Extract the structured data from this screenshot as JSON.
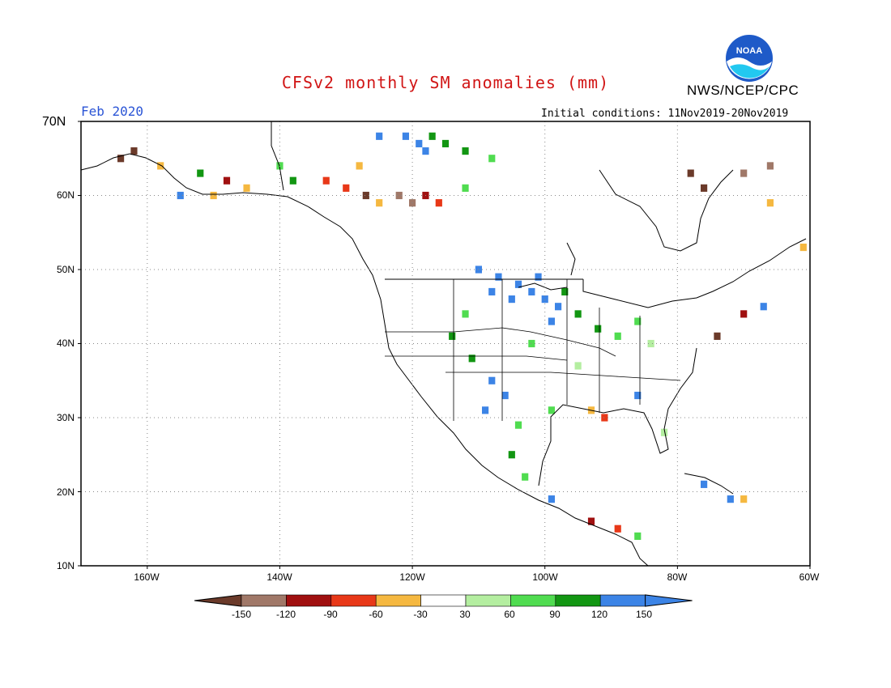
{
  "header": {
    "title": "CFSv2 monthly SM anomalies (mm)",
    "agency": "NWS/NCEP/CPC",
    "logo_text": "NOAA",
    "valid_month": "Feb 2020",
    "initial_conditions": "Initial conditions: 11Nov2019-20Nov2019"
  },
  "map": {
    "lat_labels": [
      "70N",
      "60N",
      "50N",
      "40N",
      "30N",
      "20N",
      "10N"
    ],
    "lon_labels": [
      "160W",
      "140W",
      "120W",
      "100W",
      "80W",
      "60W"
    ],
    "lat_range": [
      10,
      70
    ],
    "lon_range": [
      -170,
      -60
    ],
    "grid": true,
    "cells": [
      {
        "lon": -125,
        "lat": 68,
        "v": 130
      },
      {
        "lon": -121,
        "lat": 68,
        "v": 130
      },
      {
        "lon": -119,
        "lat": 67,
        "v": 130
      },
      {
        "lon": -117,
        "lat": 68,
        "v": 100
      },
      {
        "lon": -115,
        "lat": 67,
        "v": 100
      },
      {
        "lon": -118,
        "lat": 66,
        "v": 130
      },
      {
        "lon": -112,
        "lat": 66,
        "v": 100
      },
      {
        "lon": -108,
        "lat": 65,
        "v": 70
      },
      {
        "lon": -162,
        "lat": 66,
        "v": -160
      },
      {
        "lon": -164,
        "lat": 65,
        "v": -160
      },
      {
        "lon": -158,
        "lat": 64,
        "v": -45
      },
      {
        "lon": -152,
        "lat": 63,
        "v": 100
      },
      {
        "lon": -148,
        "lat": 62,
        "v": -100
      },
      {
        "lon": -145,
        "lat": 61,
        "v": -45
      },
      {
        "lon": -138,
        "lat": 62,
        "v": 100
      },
      {
        "lon": -133,
        "lat": 62,
        "v": -75
      },
      {
        "lon": -130,
        "lat": 61,
        "v": -75
      },
      {
        "lon": -127,
        "lat": 60,
        "v": -160
      },
      {
        "lon": -125,
        "lat": 59,
        "v": -45
      },
      {
        "lon": -122,
        "lat": 60,
        "v": -130
      },
      {
        "lon": -120,
        "lat": 59,
        "v": -130
      },
      {
        "lon": -118,
        "lat": 60,
        "v": -100
      },
      {
        "lon": -116,
        "lat": 59,
        "v": -75
      },
      {
        "lon": -112,
        "lat": 61,
        "v": 70
      },
      {
        "lon": -128,
        "lat": 64,
        "v": -45
      },
      {
        "lon": -140,
        "lat": 64,
        "v": 70
      },
      {
        "lon": -155,
        "lat": 60,
        "v": 130
      },
      {
        "lon": -150,
        "lat": 60,
        "v": -45
      },
      {
        "lon": -110,
        "lat": 50,
        "v": 130
      },
      {
        "lon": -107,
        "lat": 49,
        "v": 130
      },
      {
        "lon": -104,
        "lat": 48,
        "v": 130
      },
      {
        "lon": -102,
        "lat": 47,
        "v": 130
      },
      {
        "lon": -100,
        "lat": 46,
        "v": 130
      },
      {
        "lon": -98,
        "lat": 45,
        "v": 130
      },
      {
        "lon": -105,
        "lat": 46,
        "v": 130
      },
      {
        "lon": -108,
        "lat": 47,
        "v": 130
      },
      {
        "lon": -101,
        "lat": 49,
        "v": 130
      },
      {
        "lon": -99,
        "lat": 43,
        "v": 130
      },
      {
        "lon": -97,
        "lat": 47,
        "v": 100
      },
      {
        "lon": -95,
        "lat": 44,
        "v": 100
      },
      {
        "lon": -112,
        "lat": 44,
        "v": 70
      },
      {
        "lon": -114,
        "lat": 41,
        "v": 100
      },
      {
        "lon": -111,
        "lat": 38,
        "v": 100
      },
      {
        "lon": -108,
        "lat": 35,
        "v": 130
      },
      {
        "lon": -106,
        "lat": 33,
        "v": 130
      },
      {
        "lon": -109,
        "lat": 31,
        "v": 130
      },
      {
        "lon": -104,
        "lat": 29,
        "v": 70
      },
      {
        "lon": -102,
        "lat": 40,
        "v": 70
      },
      {
        "lon": -92,
        "lat": 42,
        "v": 100
      },
      {
        "lon": -89,
        "lat": 41,
        "v": 70
      },
      {
        "lon": -86,
        "lat": 43,
        "v": 70
      },
      {
        "lon": -84,
        "lat": 40,
        "v": 45
      },
      {
        "lon": -86,
        "lat": 33,
        "v": 130
      },
      {
        "lon": -82,
        "lat": 28,
        "v": 45
      },
      {
        "lon": -95,
        "lat": 37,
        "v": 45
      },
      {
        "lon": -99,
        "lat": 31,
        "v": 70
      },
      {
        "lon": -93,
        "lat": 31,
        "v": -45
      },
      {
        "lon": -91,
        "lat": 30,
        "v": -75
      },
      {
        "lon": -105,
        "lat": 25,
        "v": 100
      },
      {
        "lon": -103,
        "lat": 22,
        "v": 70
      },
      {
        "lon": -99,
        "lat": 19,
        "v": 130
      },
      {
        "lon": -93,
        "lat": 16,
        "v": -100
      },
      {
        "lon": -89,
        "lat": 15,
        "v": -75
      },
      {
        "lon": -86,
        "lat": 14,
        "v": 70
      },
      {
        "lon": -76,
        "lat": 21,
        "v": 130
      },
      {
        "lon": -72,
        "lat": 19,
        "v": 130
      },
      {
        "lon": -70,
        "lat": 19,
        "v": -45
      },
      {
        "lon": -74,
        "lat": 41,
        "v": -160
      },
      {
        "lon": -70,
        "lat": 44,
        "v": -100
      },
      {
        "lon": -67,
        "lat": 45,
        "v": 130
      },
      {
        "lon": -66,
        "lat": 59,
        "v": -45
      },
      {
        "lon": -61,
        "lat": 53,
        "v": -45
      },
      {
        "lon": -70,
        "lat": 63,
        "v": -130
      },
      {
        "lon": -66,
        "lat": 64,
        "v": -130
      },
      {
        "lon": -76,
        "lat": 61,
        "v": -160
      },
      {
        "lon": -78,
        "lat": 63,
        "v": -160
      }
    ]
  },
  "colorbar": {
    "labels": [
      "-150",
      "-120",
      "-90",
      "-60",
      "-30",
      "30",
      "60",
      "90",
      "120",
      "150"
    ],
    "colors": [
      "#6b3a2a",
      "#a07868",
      "#a01010",
      "#e83818",
      "#f5b840",
      "#ffffff",
      "#b4eea0",
      "#50dc50",
      "#129612",
      "#3c84e6",
      "#3c84e6"
    ]
  }
}
